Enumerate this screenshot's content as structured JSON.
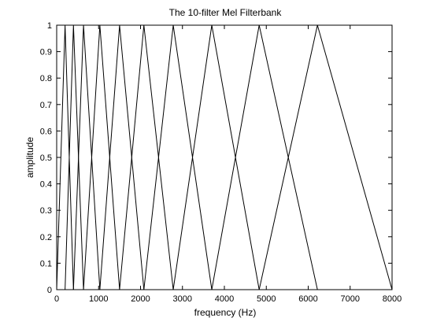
{
  "chart_data": {
    "type": "line",
    "title": "The 10-filter Mel Filterbank",
    "xlabel": "frequency (Hz)",
    "ylabel": "amplitude",
    "xlim": [
      0,
      8000
    ],
    "ylim": [
      0,
      1
    ],
    "xticks": [
      0,
      1000,
      2000,
      3000,
      4000,
      5000,
      6000,
      7000,
      8000
    ],
    "xtick_labels": [
      "0",
      "1000",
      "2000",
      "3000",
      "4000",
      "5000",
      "6000",
      "7000",
      "8000"
    ],
    "yticks": [
      0,
      0.1,
      0.2,
      0.3,
      0.4,
      0.5,
      0.6,
      0.7,
      0.8,
      0.9,
      1
    ],
    "ytick_labels": [
      "0",
      "0.1",
      "0.2",
      "0.3",
      "0.4",
      "0.5",
      "0.6",
      "0.7",
      "0.8",
      "0.9",
      "1"
    ],
    "grid": false,
    "line_color": "#000000",
    "filter_edges_hz": [
      0,
      200,
      400,
      640,
      1030,
      1500,
      2080,
      2780,
      3700,
      4830,
      6220,
      8000
    ],
    "series": [
      {
        "x": [
          0,
          200,
          400
        ],
        "y": [
          0,
          1,
          0
        ]
      },
      {
        "x": [
          200,
          400,
          640
        ],
        "y": [
          0,
          1,
          0
        ]
      },
      {
        "x": [
          400,
          640,
          1030
        ],
        "y": [
          0,
          1,
          0
        ]
      },
      {
        "x": [
          640,
          1030,
          1500
        ],
        "y": [
          0,
          1,
          0
        ]
      },
      {
        "x": [
          1030,
          1500,
          2080
        ],
        "y": [
          0,
          1,
          0
        ]
      },
      {
        "x": [
          1500,
          2080,
          2780
        ],
        "y": [
          0,
          1,
          0
        ]
      },
      {
        "x": [
          2080,
          2780,
          3700
        ],
        "y": [
          0,
          1,
          0
        ]
      },
      {
        "x": [
          2780,
          3700,
          4830
        ],
        "y": [
          0,
          1,
          0
        ]
      },
      {
        "x": [
          3700,
          4830,
          6220
        ],
        "y": [
          0,
          1,
          0
        ]
      },
      {
        "x": [
          4830,
          6220,
          8000
        ],
        "y": [
          0,
          1,
          0
        ]
      }
    ]
  }
}
